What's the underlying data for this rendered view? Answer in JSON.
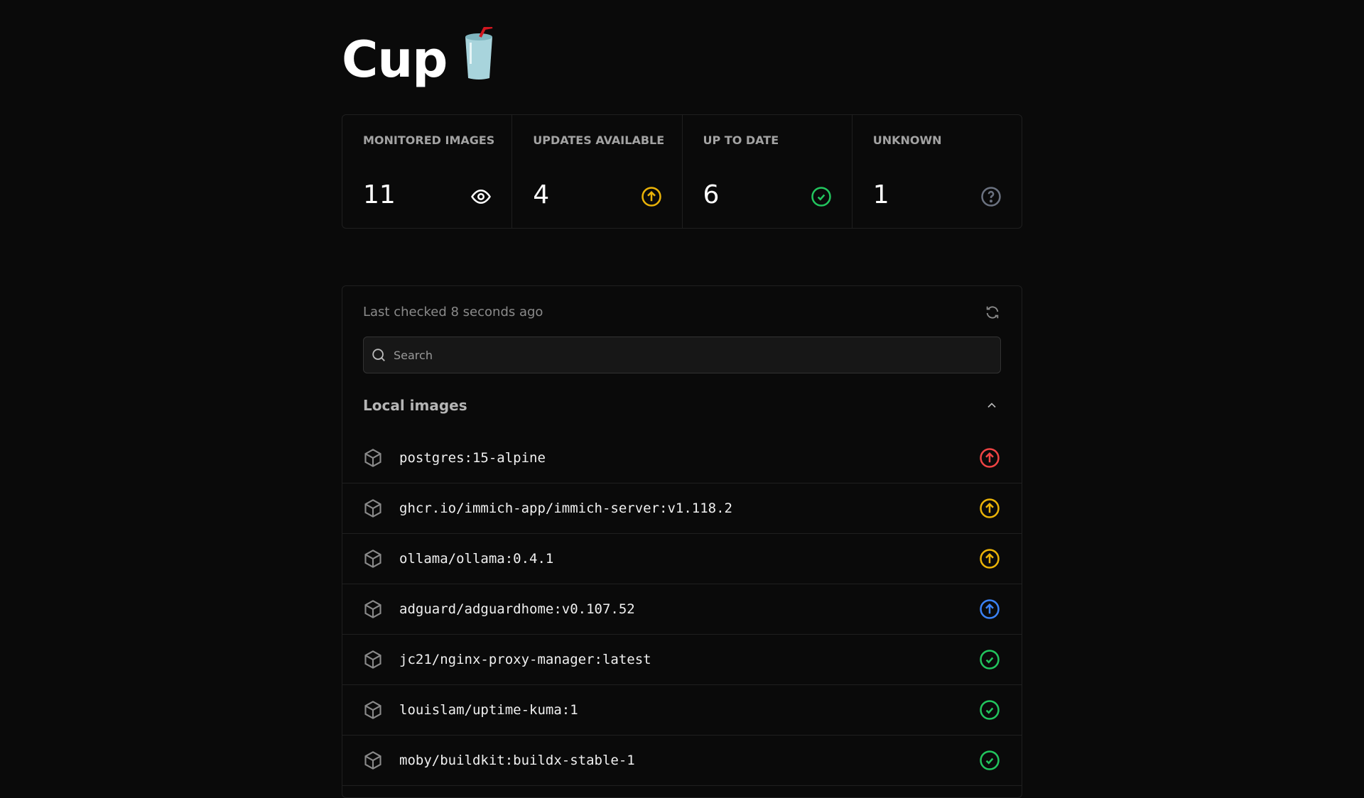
{
  "app": {
    "title": "Cup",
    "logo_emoji": "🥤"
  },
  "colors": {
    "red": "#ef4444",
    "yellow": "#eab308",
    "blue": "#3b82f6",
    "green": "#22c55e",
    "gray": "#6b7280"
  },
  "stats": [
    {
      "label": "MONITORED IMAGES",
      "value": "11",
      "icon": "eye-icon"
    },
    {
      "label": "UPDATES AVAILABLE",
      "value": "4",
      "icon": "arrow-up-circle-icon"
    },
    {
      "label": "UP TO DATE",
      "value": "6",
      "icon": "check-circle-icon"
    },
    {
      "label": "UNKNOWN",
      "value": "1",
      "icon": "question-circle-icon"
    }
  ],
  "list": {
    "last_checked": "Last checked 8 seconds ago",
    "search_placeholder": "Search",
    "section_title": "Local images",
    "images": [
      {
        "name": "postgres:15-alpine",
        "status": "major-update",
        "color": "#ef4444"
      },
      {
        "name": "ghcr.io/immich-app/immich-server:v1.118.2",
        "status": "minor-update",
        "color": "#eab308"
      },
      {
        "name": "ollama/ollama:0.4.1",
        "status": "minor-update",
        "color": "#eab308"
      },
      {
        "name": "adguard/adguardhome:v0.107.52",
        "status": "patch-update",
        "color": "#3b82f6"
      },
      {
        "name": "jc21/nginx-proxy-manager:latest",
        "status": "up-to-date",
        "color": "#22c55e"
      },
      {
        "name": "louislam/uptime-kuma:1",
        "status": "up-to-date",
        "color": "#22c55e"
      },
      {
        "name": "moby/buildkit:buildx-stable-1",
        "status": "up-to-date",
        "color": "#22c55e"
      }
    ]
  }
}
